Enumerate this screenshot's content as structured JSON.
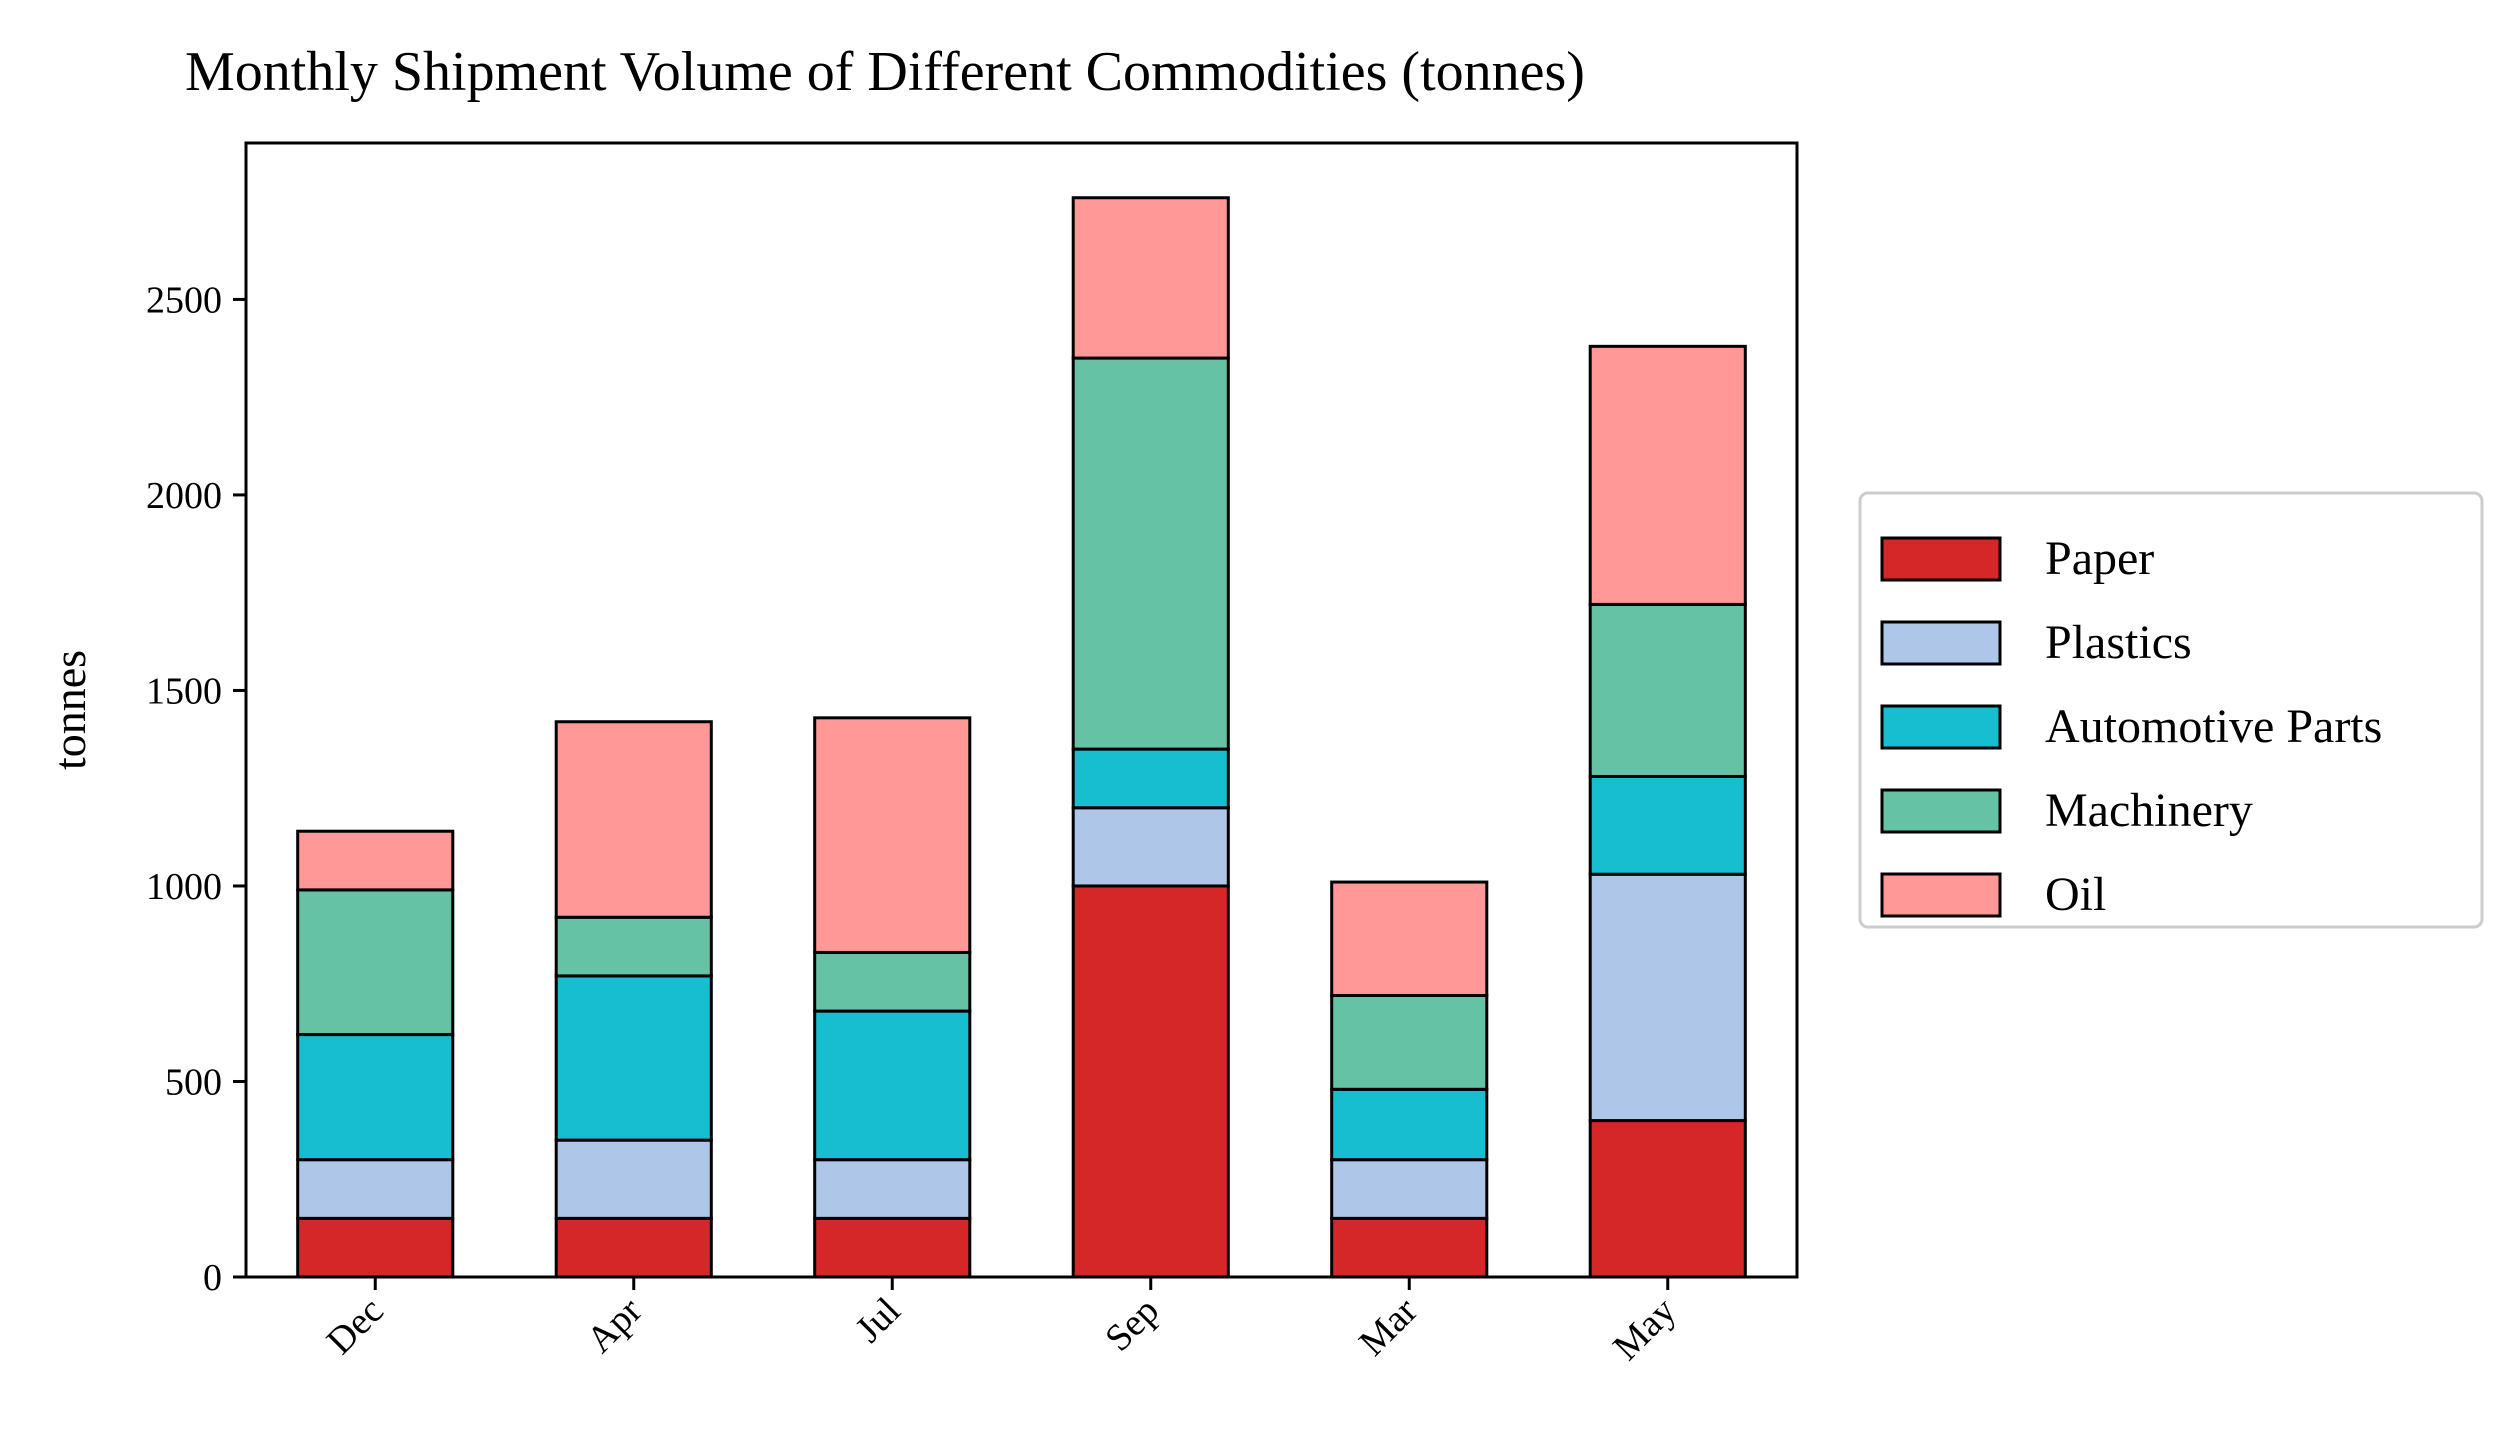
{
  "chart_data": {
    "type": "bar",
    "stacked": true,
    "title": "Monthly Shipment Volume of Different Commodities (tonnes)",
    "xlabel": "",
    "ylabel": "tonnes",
    "categories": [
      "Dec",
      "Apr",
      "Jul",
      "Sep",
      "Mar",
      "May"
    ],
    "ylim": [
      0,
      2900
    ],
    "yticks": [
      0,
      500,
      1000,
      1500,
      2000,
      2500
    ],
    "grid": false,
    "legend_position": "right-center",
    "series": [
      {
        "name": "Paper",
        "color": "#d62728",
        "values": [
          150,
          150,
          150,
          1000,
          150,
          400
        ]
      },
      {
        "name": "Plastics",
        "color": "#aec7e8",
        "values": [
          150,
          200,
          150,
          200,
          150,
          630
        ]
      },
      {
        "name": "Automotive Parts",
        "color": "#17becf",
        "values": [
          320,
          420,
          380,
          150,
          180,
          250
        ]
      },
      {
        "name": "Machinery",
        "color": "#66c2a5",
        "values": [
          370,
          150,
          150,
          1000,
          240,
          440
        ]
      },
      {
        "name": "Oil",
        "color": "#ff9896",
        "values": [
          150,
          500,
          600,
          410,
          290,
          660
        ]
      }
    ]
  }
}
